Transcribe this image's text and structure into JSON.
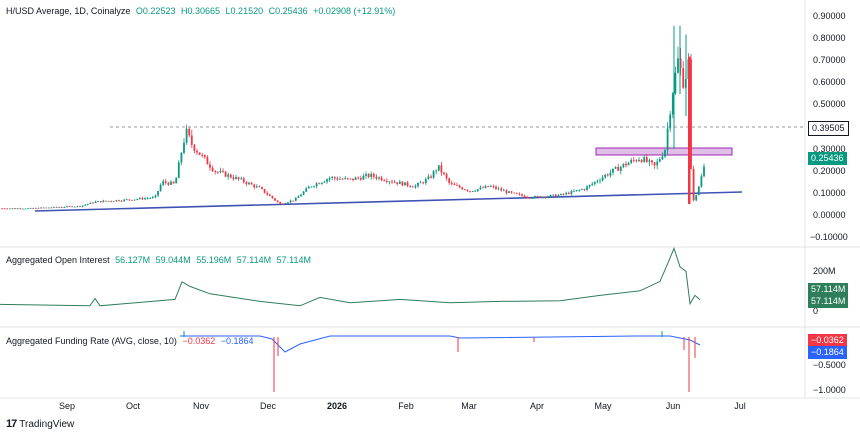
{
  "main_legend": {
    "symbol": "H/USD Average, 1D, Coinalyze",
    "open": "O0.22523",
    "high": "H0.30665",
    "low": "L0.21520",
    "close": "C0.25436",
    "change": "+0.02908 (+12.91%)"
  },
  "oi_legend": {
    "title": "Aggregated Open Interest",
    "values": [
      "56.127M",
      "59.044M",
      "55.196M",
      "57.114M",
      "57.114M"
    ]
  },
  "fr_legend": {
    "title": "Aggregated Funding Rate (AVG, close, 10)",
    "value1": "−0.0362",
    "value2": "−0.1864"
  },
  "price_axis": [
    "0.90000",
    "0.80000",
    "0.70000",
    "0.60000",
    "0.50000",
    "0.30000",
    "0.20000",
    "0.10000",
    "0.00000",
    "−0.10000"
  ],
  "price_tags": {
    "resistance": "0.39505",
    "last": "0.25436"
  },
  "oi_axis": [
    "200M",
    "0"
  ],
  "oi_tags": [
    "57.114M",
    "57.114M"
  ],
  "fr_axis": [
    "−0.5000",
    "−1.0000"
  ],
  "fr_tags": [
    "−0.0362",
    "−0.1864"
  ],
  "time_axis": [
    "Sep",
    "Oct",
    "Nov",
    "Dec",
    "2026",
    "Feb",
    "Mar",
    "Apr",
    "May",
    "Jun",
    "Jul"
  ],
  "brand": "TradingView",
  "colors": {
    "up": "#089981",
    "down": "#f23645",
    "trendline": "#3f51b5",
    "zone": "#e1bee7",
    "zone_border": "#9c27b0",
    "oi_line": "#2e7d5b",
    "fr_line": "#2962ff"
  }
}
